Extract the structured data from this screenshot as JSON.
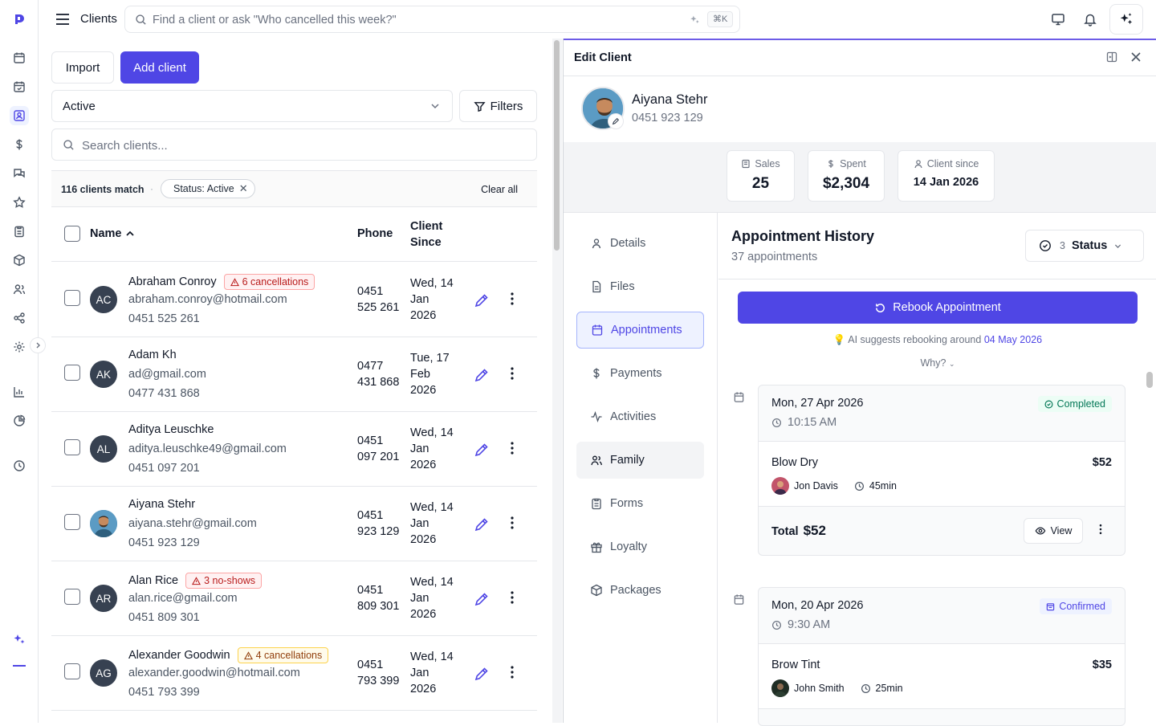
{
  "topbar": {
    "title": "Clients",
    "search_placeholder": "Find a client or ask \"Who cancelled this week?\"",
    "shortcut": "⌘K"
  },
  "rail": {
    "icons": [
      "logo-icon",
      "calendar-icon",
      "calendar-check-icon",
      "clients-icon",
      "dollar-icon",
      "messages-icon",
      "star-icon",
      "clipboard-icon",
      "box-icon",
      "team-icon",
      "share-icon",
      "settings-icon",
      "chart-icon",
      "pie-chart-icon",
      "clock-icon",
      "sparkle-icon"
    ],
    "accent": "#4f46e5"
  },
  "clients": {
    "import_label": "Import",
    "add_label": "Add client",
    "status_filter": "Active",
    "filters_label": "Filters",
    "search_placeholder": "Search clients...",
    "match_count": "116 clients match",
    "chip_label": "Status: Active",
    "clear_all": "Clear all",
    "columns": {
      "name": "Name",
      "phone": "Phone",
      "since": "Client Since"
    },
    "rows": [
      {
        "initials": "AC",
        "name": "Abraham Conroy",
        "badge": "6 cancellations",
        "badge_color": "red",
        "email": "abraham.conroy@hotmail.com",
        "phone": "0451 525 261",
        "phone_col": "0451 525 261",
        "since": "Wed, 14 Jan 2026"
      },
      {
        "initials": "AK",
        "name": "Adam Kh",
        "badge": "",
        "email": "ad@gmail.com",
        "phone": "0477 431 868",
        "phone_col": "0477 431 868",
        "since": "Tue, 17 Feb 2026"
      },
      {
        "initials": "AL",
        "name": "Aditya Leuschke",
        "badge": "",
        "email": "aditya.leuschke49@gmail.com",
        "phone": "0451 097 201",
        "phone_col": "0451 097 201",
        "since": "Wed, 14 Jan 2026"
      },
      {
        "initials": "",
        "photo": true,
        "name": "Aiyana Stehr",
        "badge": "",
        "email": "aiyana.stehr@gmail.com",
        "phone": "0451 923 129",
        "phone_col": "0451 923 129",
        "since": "Wed, 14 Jan 2026"
      },
      {
        "initials": "AR",
        "name": "Alan Rice",
        "badge": "3 no-shows",
        "badge_color": "red",
        "email": "alan.rice@gmail.com",
        "phone": "0451 809 301",
        "phone_col": "0451 809 301",
        "since": "Wed, 14 Jan 2026"
      },
      {
        "initials": "AG",
        "name": "Alexander Goodwin",
        "badge": "4 cancellations",
        "badge_color": "amber",
        "email": "alexander.goodwin@hotmail.com",
        "phone": "0451 793 399",
        "phone_col": "0451 793 399",
        "since": "Wed, 14 Jan 2026"
      }
    ]
  },
  "drawer": {
    "title": "Edit Client",
    "client_name": "Aiyana Stehr",
    "client_phone": "0451 923 129",
    "stats": [
      {
        "label": "Sales",
        "value": "25",
        "icon": "receipt-icon"
      },
      {
        "label": "Spent",
        "value": "$2,304",
        "icon": "dollar-icon"
      },
      {
        "label": "Client since",
        "value": "14 Jan 2026",
        "icon": "user-icon"
      }
    ],
    "tabs": [
      {
        "label": "Details",
        "icon": "user-icon"
      },
      {
        "label": "Files",
        "icon": "file-icon"
      },
      {
        "label": "Appointments",
        "icon": "calendar-icon"
      },
      {
        "label": "Payments",
        "icon": "dollar-icon"
      },
      {
        "label": "Activities",
        "icon": "activity-icon"
      },
      {
        "label": "Family",
        "icon": "family-icon"
      },
      {
        "label": "Forms",
        "icon": "clipboard-icon"
      },
      {
        "label": "Loyalty",
        "icon": "gift-icon"
      },
      {
        "label": "Packages",
        "icon": "package-icon"
      }
    ],
    "active_tab": "Appointments",
    "history": {
      "title": "Appointment History",
      "subtitle": "37 appointments",
      "status_count": "3",
      "status_label": "Status",
      "rebook_label": "Rebook Appointment",
      "ai_prefix": "AI suggests rebooking around",
      "ai_date": "04 May 2026",
      "why": "Why?",
      "appointments": [
        {
          "date": "Mon, 27 Apr 2026",
          "time": "10:15 AM",
          "status": "Completed",
          "status_color": "green",
          "service": "Blow Dry",
          "price": "$52",
          "staff": "Jon Davis",
          "duration": "45min",
          "total_label": "Total",
          "total": "$52",
          "view_label": "View"
        },
        {
          "date": "Mon, 20 Apr 2026",
          "time": "9:30 AM",
          "status": "Confirmed",
          "status_color": "blue",
          "service": "Brow Tint",
          "price": "$35",
          "staff": "John Smith",
          "duration": "25min"
        }
      ]
    }
  }
}
